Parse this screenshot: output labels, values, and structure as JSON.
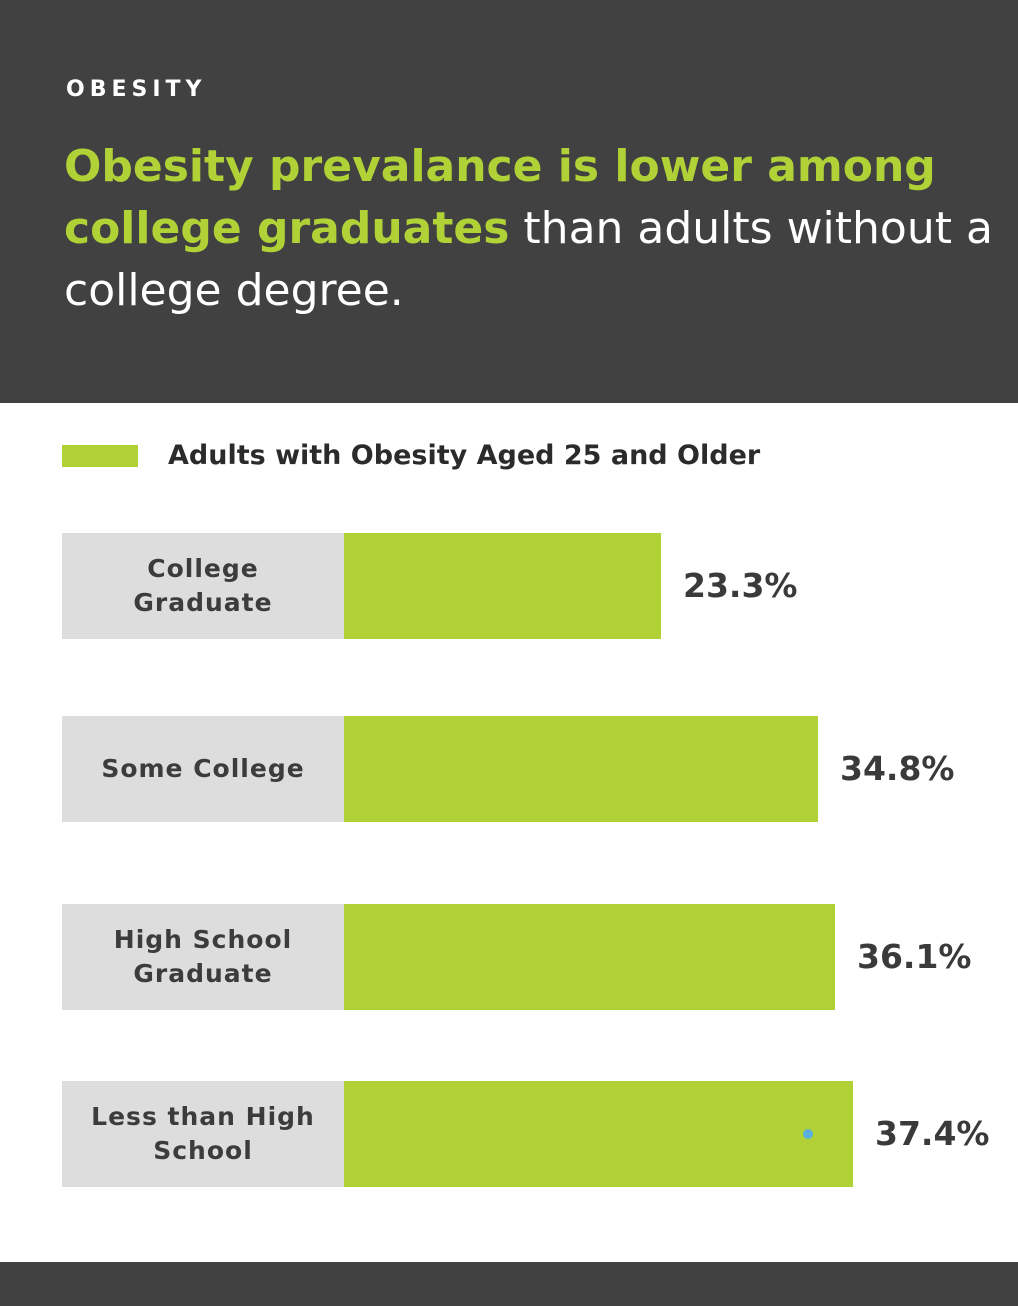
{
  "header": {
    "eyebrow": "OBESITY",
    "headline_highlight": "Obesity prevalance is lower among college graduates",
    "headline_rest": " than adults without a college degree."
  },
  "colors": {
    "accent": "#b0d236",
    "header_bg": "#414141",
    "label_bg": "#dddddd",
    "marker": "#5aaee0"
  },
  "chart_data": {
    "type": "bar",
    "orientation": "horizontal",
    "title": "Obesity prevalance is lower among college graduates than adults without a college degree.",
    "legend": [
      "Adults with Obesity Aged 25 and Older"
    ],
    "categories": [
      "College Graduate",
      "Some College",
      "High School Graduate",
      "Less than High School"
    ],
    "series": [
      {
        "name": "Adults with Obesity Aged 25 and Older",
        "values": [
          23.3,
          34.8,
          36.1,
          37.4
        ]
      }
    ],
    "value_labels": [
      "23.3%",
      "34.8%",
      "36.1%",
      "37.4%"
    ],
    "unit": "%"
  }
}
